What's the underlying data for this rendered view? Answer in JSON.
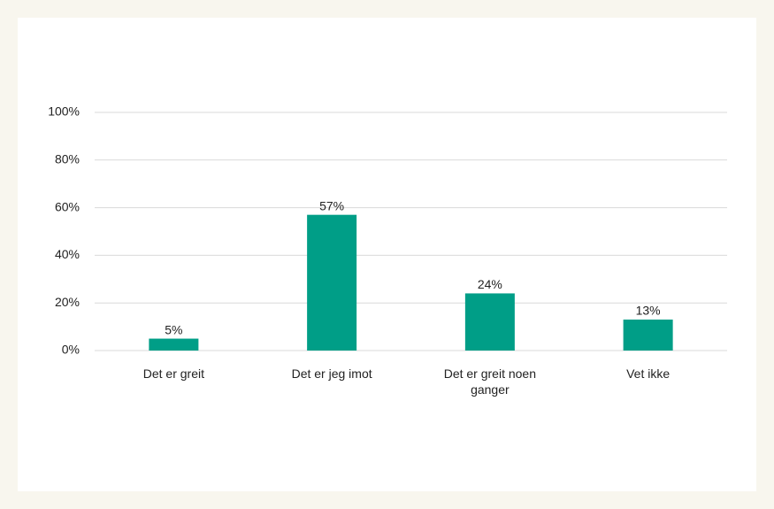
{
  "chart_data": {
    "type": "bar",
    "categories": [
      "Det er greit",
      "Det er jeg imot",
      "Det er greit noen ganger",
      "Vet ikke"
    ],
    "values": [
      5,
      57,
      24,
      13
    ],
    "value_labels": [
      "5%",
      "57%",
      "24%",
      "13%"
    ],
    "color": "#009e87",
    "ylim": [
      0,
      100
    ],
    "yticks": [
      {
        "value": 0,
        "label": "0%"
      },
      {
        "value": 20,
        "label": "20%"
      },
      {
        "value": 40,
        "label": "40%"
      },
      {
        "value": 60,
        "label": "60%"
      },
      {
        "value": 80,
        "label": "80%"
      },
      {
        "value": 100,
        "label": "100%"
      }
    ],
    "grid": true
  }
}
